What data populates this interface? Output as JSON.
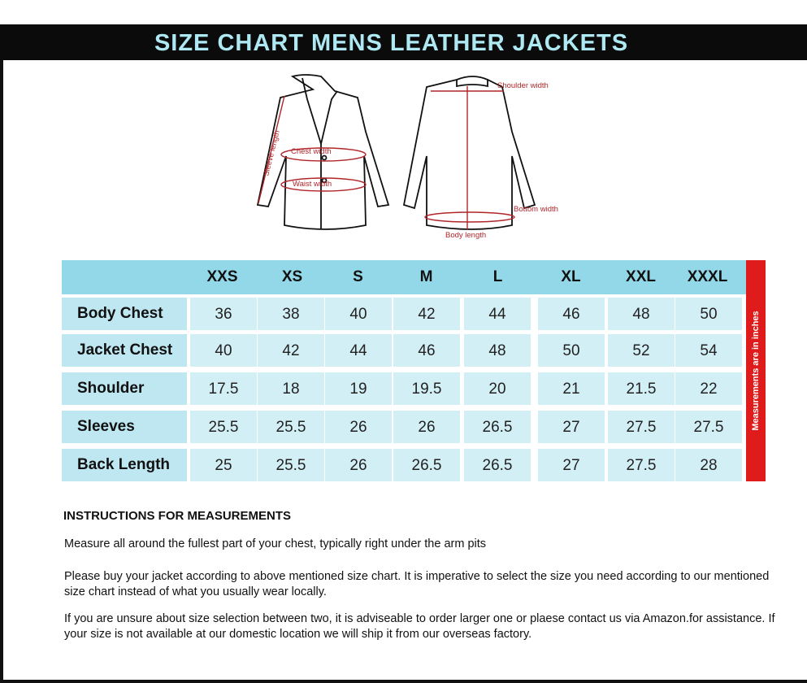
{
  "title": "SIZE CHART MENS LEATHER JACKETS",
  "diagram": {
    "labels": {
      "sleeve_length": "Sleeve length",
      "chest_width": "Chest width",
      "waist_width": "Waist width",
      "shoulder_width": "Shoulder width",
      "bottom_width": "Bottom width",
      "body_length": "Body length"
    },
    "accent_color": "#b0262a"
  },
  "table": {
    "sizes": [
      "XXS",
      "XS",
      "S",
      "M",
      "L",
      "XL",
      "XXL",
      "XXXL"
    ],
    "rows": [
      {
        "label": "Body Chest",
        "values": [
          "36",
          "38",
          "40",
          "42",
          "44",
          "46",
          "48",
          "50"
        ]
      },
      {
        "label": "Jacket Chest",
        "values": [
          "40",
          "42",
          "44",
          "46",
          "48",
          "50",
          "52",
          "54"
        ]
      },
      {
        "label": "Shoulder",
        "values": [
          "17.5",
          "18",
          "19",
          "19.5",
          "20",
          "21",
          "21.5",
          "22"
        ]
      },
      {
        "label": "Sleeves",
        "values": [
          "25.5",
          "25.5",
          "26",
          "26",
          "26.5",
          "27",
          "27.5",
          "27.5"
        ]
      },
      {
        "label": "Back Length",
        "values": [
          "25",
          "25.5",
          "26",
          "26.5",
          "26.5",
          "27",
          "27.5",
          "28"
        ]
      }
    ],
    "unit_note": "Measurements are in inches",
    "colors": {
      "header": "#93d8e8",
      "cell": "#d3eff6",
      "unit_bar": "#e01b1b"
    }
  },
  "instructions": {
    "heading": "INSTRUCTIONS FOR MEASUREMENTS",
    "paragraphs": [
      "Measure all around the fullest part of your chest, typically right under the arm pits",
      "Please buy your jacket according to above mentioned size chart. It is imperative to select the size you need according to our mentioned size chart instead of what you  usually wear locally.",
      "If you are unsure about size selection between two, it is adviseable to order larger one or plaese contact us via Amazon.for assistance. If your size is not available at our domestic location we will ship it from our overseas factory."
    ]
  }
}
